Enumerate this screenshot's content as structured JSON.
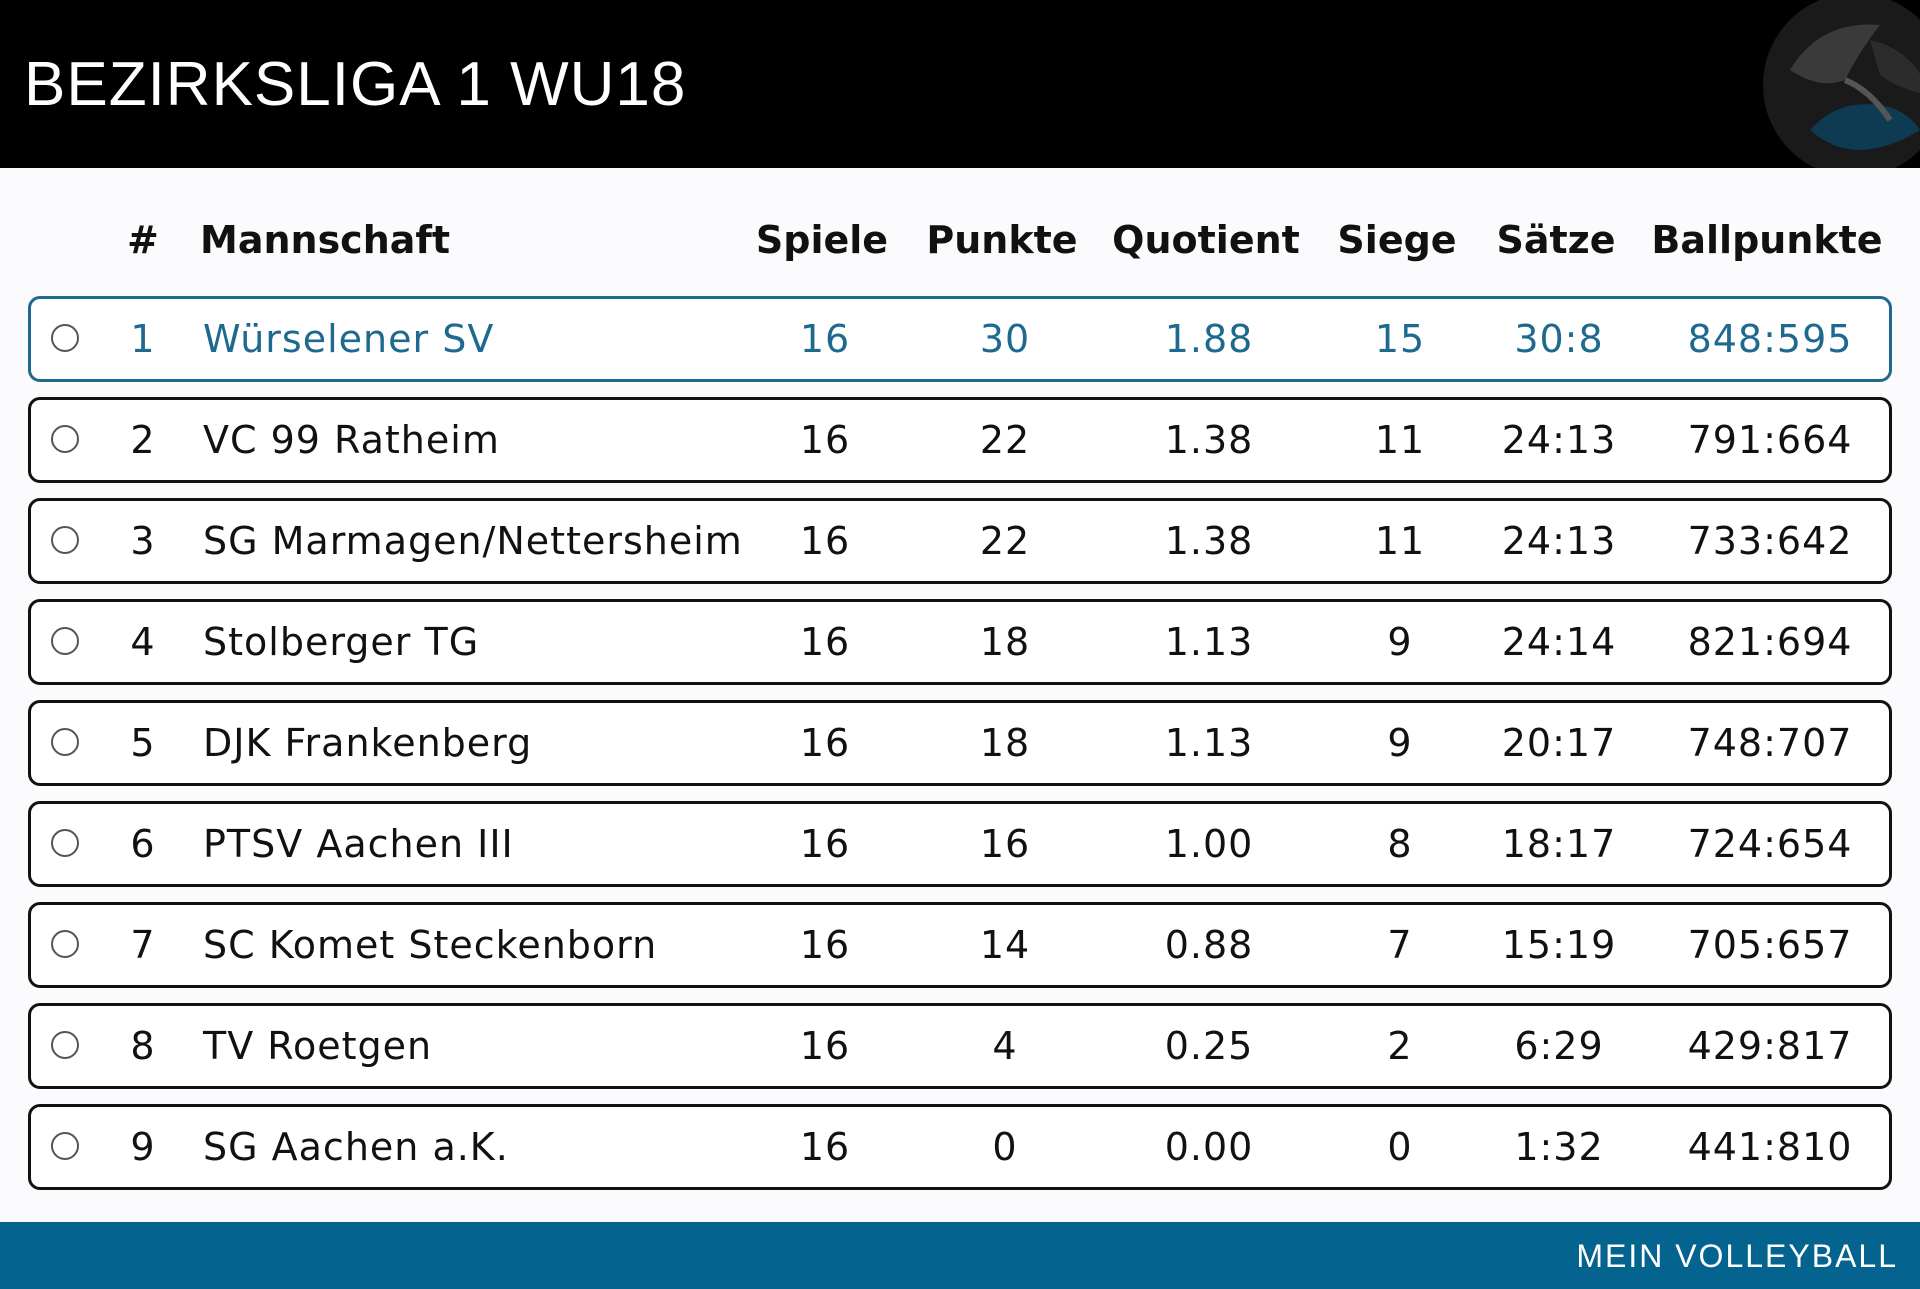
{
  "header": {
    "title": "BEZIRKSLIGA 1 WU18",
    "logo_icon": "volleyball-logo-icon"
  },
  "table": {
    "columns": [
      "#",
      "Mannschaft",
      "Spiele",
      "Punkte",
      "Quotient",
      "Siege",
      "Sätze",
      "Ballpunkte"
    ],
    "rows": [
      {
        "rank": "1",
        "team": "Würselener SV",
        "spiele": "16",
        "punkte": "30",
        "quotient": "1.88",
        "siege": "15",
        "saetze": "30:8",
        "ballpunkte": "848:595",
        "highlighted": true
      },
      {
        "rank": "2",
        "team": "VC 99 Ratheim",
        "spiele": "16",
        "punkte": "22",
        "quotient": "1.38",
        "siege": "11",
        "saetze": "24:13",
        "ballpunkte": "791:664",
        "highlighted": false
      },
      {
        "rank": "3",
        "team": "SG Marmagen/Nettersheim",
        "spiele": "16",
        "punkte": "22",
        "quotient": "1.38",
        "siege": "11",
        "saetze": "24:13",
        "ballpunkte": "733:642",
        "highlighted": false
      },
      {
        "rank": "4",
        "team": "Stolberger TG",
        "spiele": "16",
        "punkte": "18",
        "quotient": "1.13",
        "siege": "9",
        "saetze": "24:14",
        "ballpunkte": "821:694",
        "highlighted": false
      },
      {
        "rank": "5",
        "team": "DJK Frankenberg",
        "spiele": "16",
        "punkte": "18",
        "quotient": "1.13",
        "siege": "9",
        "saetze": "20:17",
        "ballpunkte": "748:707",
        "highlighted": false
      },
      {
        "rank": "6",
        "team": "PTSV Aachen III",
        "spiele": "16",
        "punkte": "16",
        "quotient": "1.00",
        "siege": "8",
        "saetze": "18:17",
        "ballpunkte": "724:654",
        "highlighted": false
      },
      {
        "rank": "7",
        "team": "SC Komet Steckenborn",
        "spiele": "16",
        "punkte": "14",
        "quotient": "0.88",
        "siege": "7",
        "saetze": "15:19",
        "ballpunkte": "705:657",
        "highlighted": false
      },
      {
        "rank": "8",
        "team": "TV Roetgen",
        "spiele": "16",
        "punkte": "4",
        "quotient": "0.25",
        "siege": "2",
        "saetze": "6:29",
        "ballpunkte": "429:817",
        "highlighted": false
      },
      {
        "rank": "9",
        "team": "SG Aachen a.K.",
        "spiele": "16",
        "punkte": "0",
        "quotient": "0.00",
        "siege": "0",
        "saetze": "1:32",
        "ballpunkte": "441:810",
        "highlighted": false
      }
    ]
  },
  "footer": {
    "label": "MEIN VOLLEYBALL"
  },
  "colors": {
    "header_bg": "#000000",
    "accent": "#1e6a8f",
    "footer_bg": "#05638f"
  }
}
